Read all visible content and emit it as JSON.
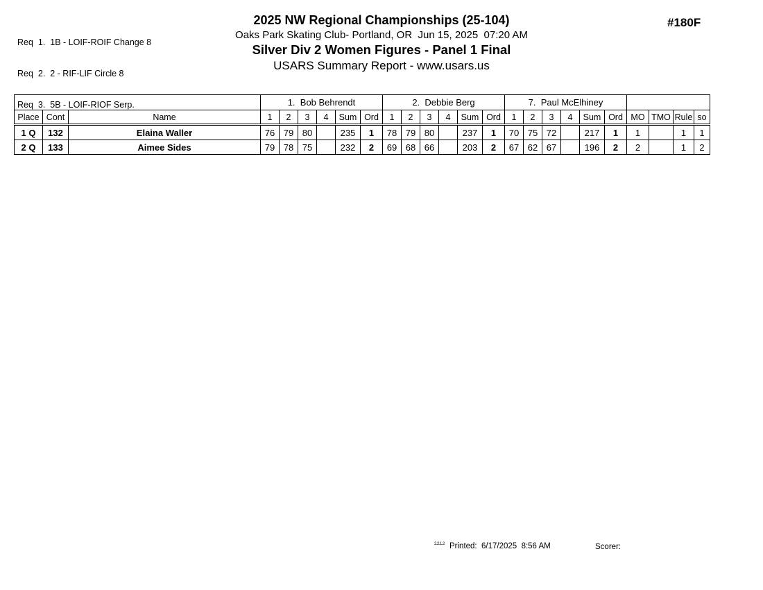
{
  "header": {
    "doc_number": "#180F",
    "title": "2025 NW Regional Championships (25-104)",
    "subtitle": "Oaks Park Skating Club- Portland, OR  Jun 15, 2025  07:20 AM",
    "event": "Silver Div 2 Women Figures - Panel 1 Final",
    "report_line": "USARS Summary Report - www.usars.us"
  },
  "requirements": [
    "Req  1.  1B - LOIF-ROIF Change 8",
    "Req  2.  2 - RIF-LIF Circle 8",
    "Req  3.  5B - LOIF-RIOF Serp."
  ],
  "table": {
    "judges": [
      "1.  Bob Behrendt",
      "2.  Debbie Berg",
      "7.  Paul McElhiney"
    ],
    "header": {
      "place": "Place",
      "cont": "Cont",
      "name": "Name",
      "score_cols": [
        "1",
        "2",
        "3",
        "4"
      ],
      "sum": "Sum",
      "ord": "Ord",
      "mo": "MO",
      "tmo": "TMO",
      "rule": "Rule",
      "so": "so"
    },
    "rows": [
      {
        "place": "1 Q",
        "cont": "132",
        "name": "Elaina Waller",
        "judges": [
          {
            "s1": "76",
            "s2": "79",
            "s3": "80",
            "s4": "",
            "sum": "235",
            "ord": "1"
          },
          {
            "s1": "78",
            "s2": "79",
            "s3": "80",
            "s4": "",
            "sum": "237",
            "ord": "1"
          },
          {
            "s1": "70",
            "s2": "75",
            "s3": "72",
            "s4": "",
            "sum": "217",
            "ord": "1"
          }
        ],
        "mo": "1",
        "tmo": "",
        "rule": "1",
        "so": "1"
      },
      {
        "place": "2 Q",
        "cont": "133",
        "name": "Aimee Sides",
        "judges": [
          {
            "s1": "79",
            "s2": "78",
            "s3": "75",
            "s4": "",
            "sum": "232",
            "ord": "2"
          },
          {
            "s1": "69",
            "s2": "68",
            "s3": "66",
            "s4": "",
            "sum": "203",
            "ord": "2"
          },
          {
            "s1": "67",
            "s2": "62",
            "s3": "67",
            "s4": "",
            "sum": "196",
            "ord": "2"
          }
        ],
        "mo": "2",
        "tmo": "",
        "rule": "1",
        "so": "2"
      }
    ]
  },
  "footer": {
    "version": "2.2.1.2",
    "printed": "Printed:  6/17/2025  8:56 AM",
    "scorer": "Scorer:"
  }
}
